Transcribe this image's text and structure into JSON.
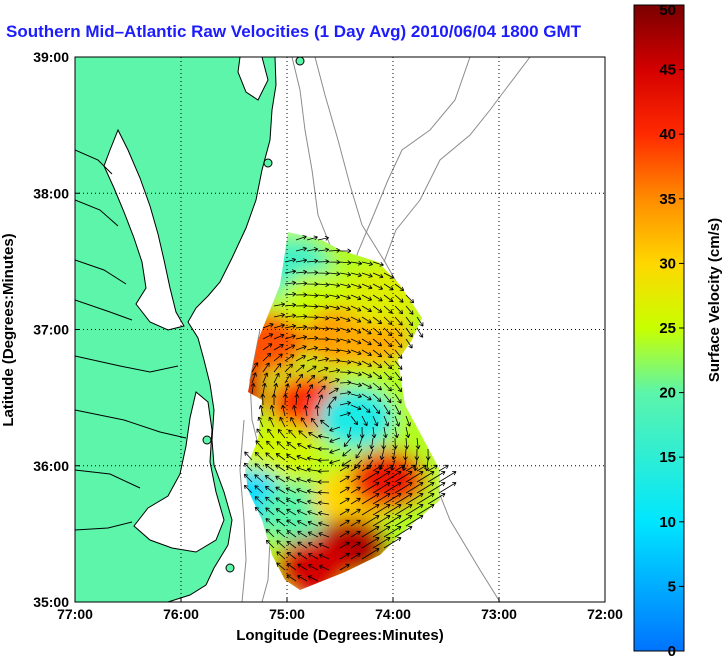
{
  "chart_data": {
    "type": "heatmap",
    "title": "Southern Mid–Atlantic Raw Velocities (1 Day Avg) 2010/06/04 1800 GMT",
    "xlabel": "Longitude (Degrees:Minutes)",
    "ylabel": "Latitude (Degrees:Minutes)",
    "x_ticks": [
      "77:00",
      "76:00",
      "75:00",
      "74:00",
      "73:00",
      "72:00"
    ],
    "y_ticks": [
      "39:00",
      "38:00",
      "37:00",
      "36:00",
      "35:00"
    ],
    "xlim": [
      -77,
      -72
    ],
    "ylim": [
      35,
      39
    ],
    "grid": true,
    "colorbar": {
      "label": "Surface Velocity (cm/s)",
      "range": [
        0,
        50
      ],
      "ticks": [
        "0",
        "5",
        "10",
        "15",
        "20",
        "25",
        "30",
        "35",
        "40",
        "45",
        "50"
      ]
    },
    "colors": {
      "land": "#5cf5aa",
      "title": "#1c1cff",
      "coast": "#000000",
      "bathymetry": "#8c8c8c"
    },
    "regions": [
      {
        "lon": -74.95,
        "lat": 37.45,
        "speed": 17
      },
      {
        "lon": -74.7,
        "lat": 37.2,
        "speed": 25
      },
      {
        "lon": -74.5,
        "lat": 36.95,
        "speed": 34
      },
      {
        "lon": -74.2,
        "lat": 36.95,
        "speed": 33
      },
      {
        "lon": -74.1,
        "lat": 37.25,
        "speed": 27
      },
      {
        "lon": -75.2,
        "lat": 36.9,
        "speed": 38
      },
      {
        "lon": -75.55,
        "lat": 36.55,
        "speed": 44
      },
      {
        "lon": -74.8,
        "lat": 36.45,
        "speed": 40
      },
      {
        "lon": -74.35,
        "lat": 36.35,
        "speed": 13
      },
      {
        "lon": -75.05,
        "lat": 36.1,
        "speed": 26
      },
      {
        "lon": -75.35,
        "lat": 35.75,
        "speed": 9
      },
      {
        "lon": -74.9,
        "lat": 35.65,
        "speed": 20
      },
      {
        "lon": -74.4,
        "lat": 35.75,
        "speed": 30
      },
      {
        "lon": -74.4,
        "lat": 35.4,
        "speed": 47
      },
      {
        "lon": -74.75,
        "lat": 35.25,
        "speed": 45
      },
      {
        "lon": -74.05,
        "lat": 35.9,
        "speed": 42
      }
    ]
  }
}
